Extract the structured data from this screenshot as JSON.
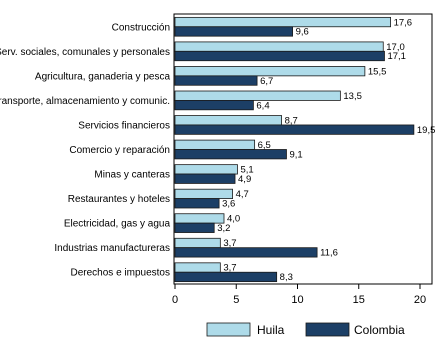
{
  "chart_data": {
    "type": "bar",
    "orientation": "horizontal",
    "categories": [
      "Construcción",
      "Serv. sociales, comunales y personales",
      "Agricultura, ganaderia y pesca",
      "Transporte, almacenamiento y comunic.",
      "Servicios financieros",
      "Comercio y reparación",
      "Minas y canteras",
      "Restaurantes y hoteles",
      "Electricidad, gas y agua",
      "Industrias manufactureras",
      "Derechos e impuestos"
    ],
    "series": [
      {
        "name": "Huila",
        "color": "#aedbe9",
        "values": [
          17.6,
          17.0,
          15.5,
          13.5,
          8.7,
          6.5,
          5.1,
          4.7,
          4.0,
          3.7,
          3.7
        ],
        "labels": [
          "17,6",
          "17,0",
          "15,5",
          "13,5",
          "8,7",
          "6,5",
          "5,1",
          "4,7",
          "4,0",
          "3,7",
          "3,7"
        ]
      },
      {
        "name": "Colombia",
        "color": "#1c3f66",
        "values": [
          9.6,
          17.1,
          6.7,
          6.4,
          19.5,
          9.1,
          4.9,
          3.6,
          3.2,
          11.6,
          8.3
        ],
        "labels": [
          "9,6",
          "17,1",
          "6,7",
          "6,4",
          "19,5",
          "9,1",
          "4,9",
          "3,6",
          "3,2",
          "11,6",
          "8,3"
        ]
      }
    ],
    "xlim": [
      0,
      20
    ],
    "xticks": [
      0,
      5,
      10,
      15,
      20
    ],
    "title": "",
    "xlabel": "",
    "ylabel": "",
    "grid": false,
    "legend": "bottom"
  }
}
